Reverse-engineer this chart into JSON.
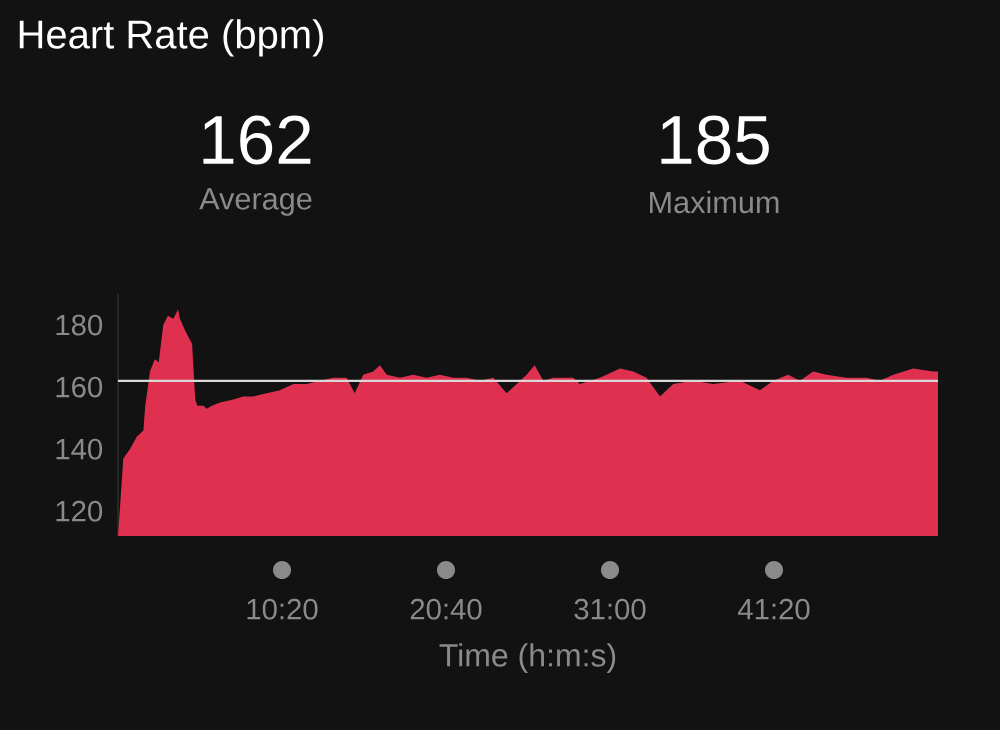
{
  "chart_data": {
    "type": "area",
    "title": "Heart Rate (bpm)",
    "xlabel": "Time (h:m:s)",
    "color": "#e0304f",
    "annotations": [
      "162",
      "Average",
      "185",
      "Maximum"
    ],
    "x": [
      0,
      13,
      20,
      45,
      71,
      96,
      103,
      121,
      139,
      154,
      171,
      189,
      209,
      227,
      234,
      255,
      280,
      292,
      300,
      323,
      335,
      355,
      386,
      436,
      474,
      512,
      562,
      612,
      663,
      713,
      764,
      814,
      864,
      895,
      927,
      965,
      990,
      1016,
      1066,
      1116,
      1167,
      1217,
      1268,
      1318,
      1368,
      1419,
      1469,
      1507,
      1545,
      1575,
      1608,
      1646,
      1721,
      1746,
      1822,
      1898,
      1948,
      1998,
      2049,
      2099,
      2175,
      2250,
      2351,
      2427,
      2477,
      2533,
      2578,
      2628,
      2679,
      2754,
      2830,
      2880,
      2931,
      3006,
      3082,
      3100
    ],
    "values": [
      112,
      128,
      137,
      140,
      144,
      146,
      154,
      165,
      169,
      168,
      180,
      183,
      182,
      185,
      182,
      178,
      174,
      156,
      154,
      154,
      153,
      154,
      155,
      156,
      157,
      157,
      158,
      159,
      161,
      161,
      162,
      163,
      163,
      158,
      164,
      165,
      167,
      164,
      163,
      164,
      163,
      164,
      163,
      163,
      162,
      163,
      158,
      161,
      164,
      167,
      162,
      163,
      163,
      161,
      163,
      166,
      165,
      163,
      157,
      161,
      162,
      161,
      162,
      159,
      162,
      164,
      162,
      165,
      164,
      163,
      163,
      162,
      164,
      166,
      165,
      165
    ],
    "xlim": [
      0,
      3100
    ],
    "ylim": [
      112,
      190
    ],
    "xticks": [
      {
        "value": 620,
        "label": "10:20"
      },
      {
        "value": 1240,
        "label": "20:40"
      },
      {
        "value": 1860,
        "label": "31:00"
      },
      {
        "value": 2480,
        "label": "41:20"
      }
    ],
    "yticks": [
      120,
      140,
      160,
      180
    ],
    "ref_lines": [
      {
        "axis": "y",
        "value": 162,
        "color": "#d8d8d8"
      }
    ]
  }
}
